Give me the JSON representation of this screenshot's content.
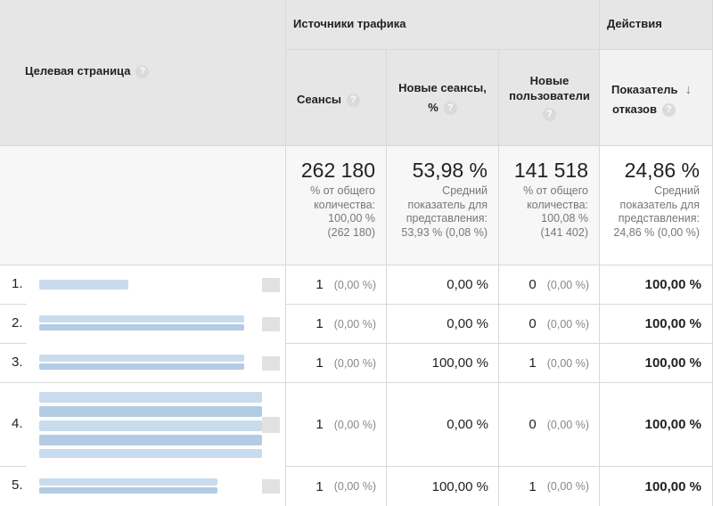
{
  "header": {
    "landing_page": "Целевая страница",
    "group_traffic": "Источники трафика",
    "group_actions": "Действия",
    "sessions": "Сеансы",
    "new_sessions_line1": "Новые сеансы,",
    "new_sessions_line2": "%",
    "new_users_line1": "Новые",
    "new_users_line2": "пользователи",
    "bounce_line1": "Показатель",
    "bounce_line2": "отказов",
    "help_glyph": "?",
    "sort_glyph": "↓"
  },
  "totals": {
    "sessions": {
      "value": "262 180",
      "note": [
        "% от общего",
        "количества:",
        "100,00 %",
        "(262 180)"
      ]
    },
    "new_sessions": {
      "value": "53,98 %",
      "note": [
        "Средний",
        "показатель для",
        "представления:",
        "53,93 % (0,08 %)"
      ]
    },
    "new_users": {
      "value": "141 518",
      "note": [
        "% от общего",
        "количества:",
        "100,08 %",
        "(141 402)"
      ]
    },
    "bounce": {
      "value": "24,86 %",
      "note": [
        "Средний",
        "показатель для",
        "представления:",
        "24,86 % (0,00 %)"
      ]
    }
  },
  "rows": [
    {
      "num": "1.",
      "sessions": "1",
      "sessions_pct": "(0,00 %)",
      "new_sessions": "0,00 %",
      "new_users": "0",
      "new_users_pct": "(0,00 %)",
      "bounce": "100,00 %"
    },
    {
      "num": "2.",
      "sessions": "1",
      "sessions_pct": "(0,00 %)",
      "new_sessions": "0,00 %",
      "new_users": "0",
      "new_users_pct": "(0,00 %)",
      "bounce": "100,00 %"
    },
    {
      "num": "3.",
      "sessions": "1",
      "sessions_pct": "(0,00 %)",
      "new_sessions": "100,00 %",
      "new_users": "1",
      "new_users_pct": "(0,00 %)",
      "bounce": "100,00 %"
    },
    {
      "num": "4.",
      "sessions": "1",
      "sessions_pct": "(0,00 %)",
      "new_sessions": "0,00 %",
      "new_users": "0",
      "new_users_pct": "(0,00 %)",
      "bounce": "100,00 %"
    },
    {
      "num": "5.",
      "sessions": "1",
      "sessions_pct": "(0,00 %)",
      "new_sessions": "100,00 %",
      "new_users": "1",
      "new_users_pct": "(0,00 %)",
      "bounce": "100,00 %"
    }
  ]
}
